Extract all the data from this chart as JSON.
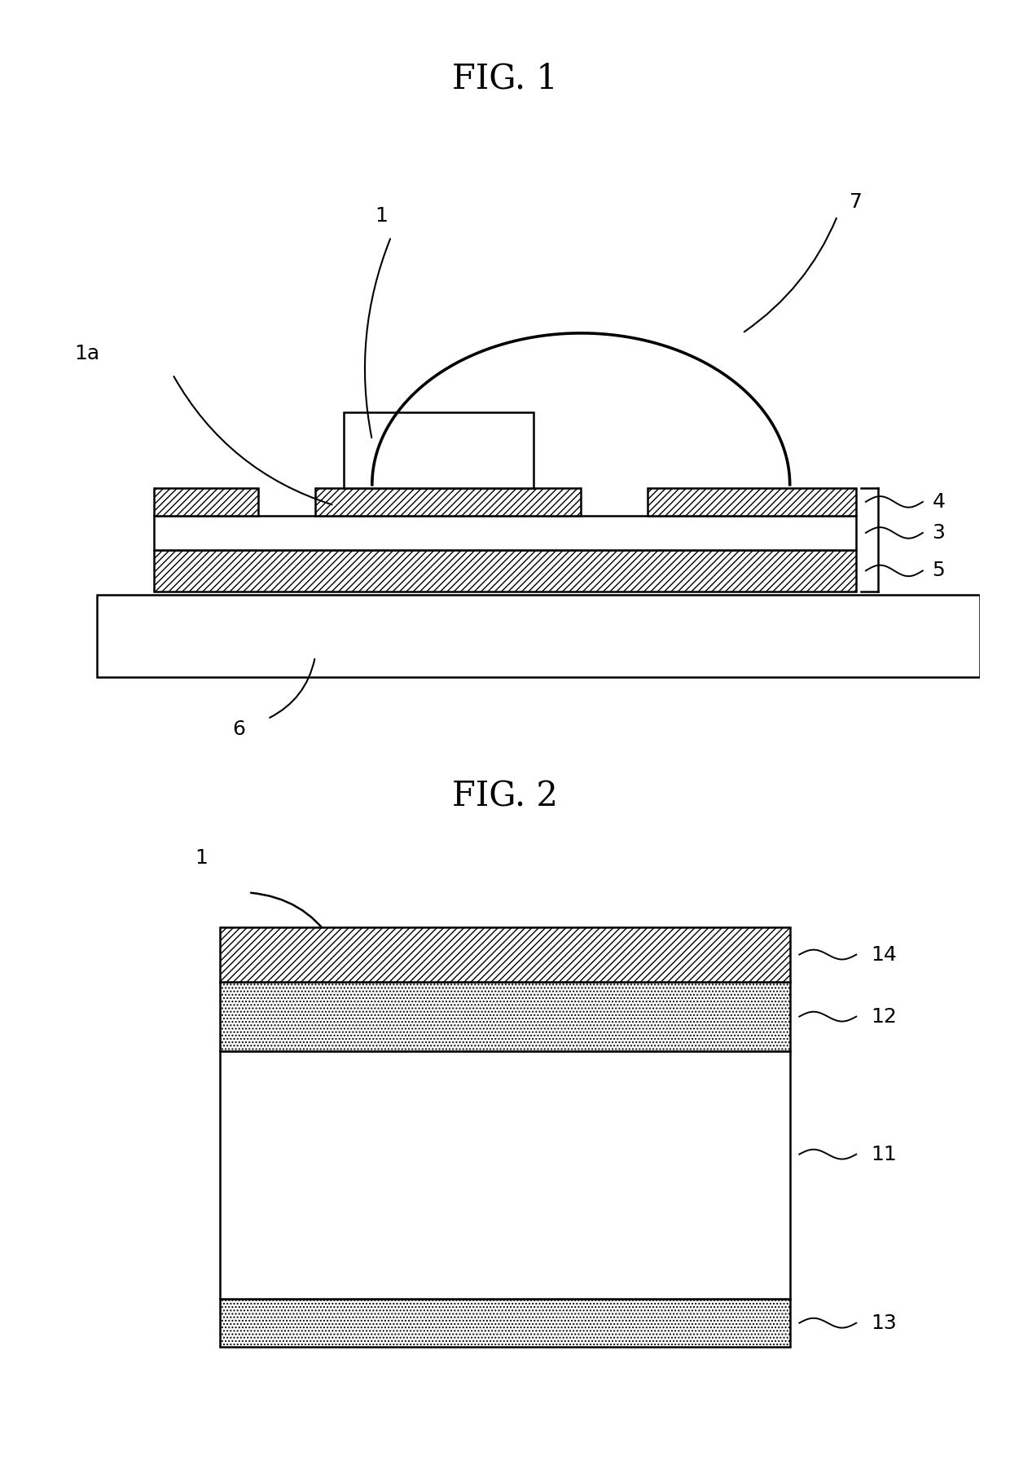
{
  "fig1_title": "FIG. 1",
  "fig2_title": "FIG. 2",
  "bg_color": "#ffffff",
  "line_color": "#000000",
  "hatch_diagonal": "////",
  "hatch_dot": "....",
  "label_fontsize": 18,
  "title_fontsize": 30,
  "lw": 1.8
}
